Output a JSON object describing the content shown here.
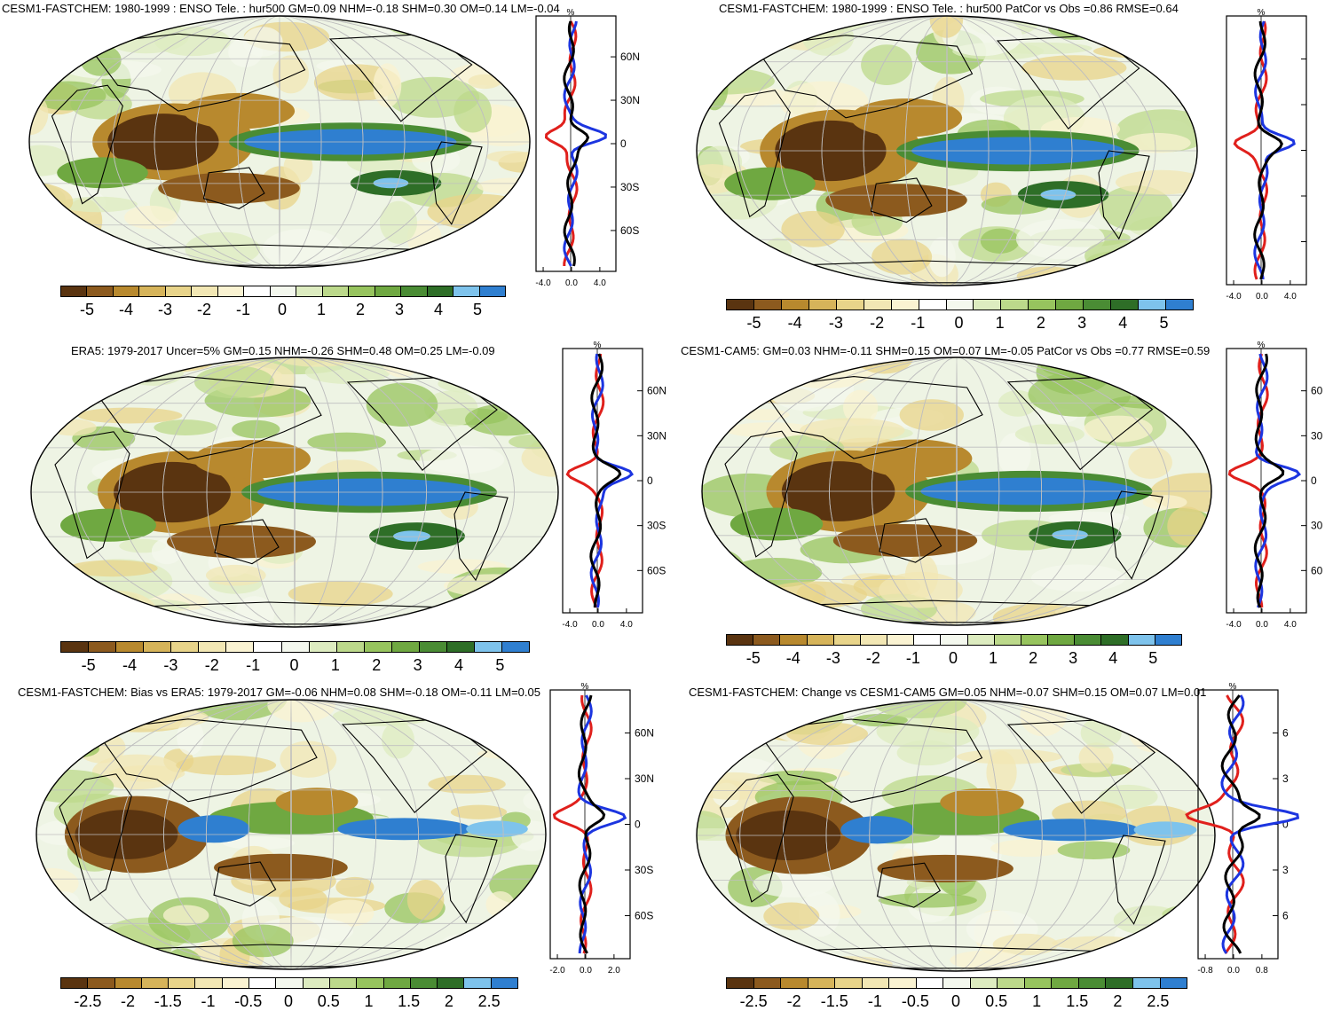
{
  "colormaps": {
    "palette": [
      "#5a3410",
      "#8c5a1e",
      "#b8892e",
      "#d6b45a",
      "#e8d48a",
      "#f2e7b4",
      "#faf3d2",
      "#ffffff",
      "#f4f8ee",
      "#ddecc0",
      "#bcd98b",
      "#97c45e",
      "#6fa841",
      "#4a8c34",
      "#2e6e27",
      "#7ec3ec",
      "#2f7fd0"
    ]
  },
  "panels": [
    {
      "id": "cesm1-fastchem",
      "title": "CESM1-FASTCHEM: 1980-1999 : ENSO Tele. : hur500 GM=0.09 NHM=-0.18 SHM=0.30 OM=0.14 LM=-0.04",
      "colorbar": {
        "labels": [
          "-5",
          "-4",
          "-3",
          "-2",
          "-1",
          "0",
          "1",
          "2",
          "3",
          "4",
          "5"
        ]
      },
      "profile": {
        "unit": "%",
        "xticks": [
          "-4.0",
          "0.0",
          "4.0"
        ],
        "yticks": [
          "60N",
          "30N",
          "0",
          "30S",
          "60S"
        ],
        "series_colors": [
          "#e0201c",
          "#1c35e0",
          "#000000"
        ]
      }
    },
    {
      "id": "cesm1-fastchem-patcor",
      "title": "CESM1-FASTCHEM: 1980-1999 : ENSO Tele. : hur500 PatCor vs Obs =0.86 RMSE=0.64",
      "colorbar": {
        "labels": [
          "-5",
          "-4",
          "-3",
          "-2",
          "-1",
          "0",
          "1",
          "2",
          "3",
          "4",
          "5"
        ]
      },
      "profile": {
        "unit": "%",
        "xticks": [
          "-4.0",
          "0.0",
          "4.0"
        ],
        "yticks": [
          "",
          "",
          "",
          "",
          ""
        ],
        "series_colors": [
          "#e0201c",
          "#1c35e0",
          "#000000"
        ]
      }
    },
    {
      "id": "era5",
      "title": "ERA5: 1979-2017 Uncer=5% GM=0.15 NHM=-0.26 SHM=0.48 OM=0.25 LM=-0.09",
      "colorbar": {
        "labels": [
          "-5",
          "-4",
          "-3",
          "-2",
          "-1",
          "0",
          "1",
          "2",
          "3",
          "4",
          "5"
        ]
      },
      "profile": {
        "unit": "%",
        "xticks": [
          "-4.0",
          "0.0",
          "4.0"
        ],
        "yticks": [
          "60N",
          "30N",
          "0",
          "30S",
          "60S"
        ],
        "series_colors": [
          "#e0201c",
          "#1c35e0",
          "#000000"
        ]
      }
    },
    {
      "id": "cesm1-cam5",
      "title": "CESM1-CAM5: GM=0.03 NHM=-0.11 SHM=0.15 OM=0.07 LM=-0.05 PatCor vs Obs =0.77 RMSE=0.59",
      "colorbar": {
        "labels": [
          "-5",
          "-4",
          "-3",
          "-2",
          "-1",
          "0",
          "1",
          "2",
          "3",
          "4",
          "5"
        ]
      },
      "profile": {
        "unit": "%",
        "xticks": [
          "-4.0",
          "0.0",
          "4.0"
        ],
        "yticks": [
          "60",
          "30",
          "0",
          "30",
          "60"
        ],
        "series_colors": [
          "#e0201c",
          "#1c35e0",
          "#000000"
        ]
      }
    },
    {
      "id": "bias-vs-era5",
      "title": "CESM1-FASTCHEM: Bias vs ERA5: 1979-2017 GM=-0.06 NHM=0.08 SHM=-0.18 OM=-0.11 LM=0.05",
      "colorbar": {
        "labels": [
          "-2.5",
          "-2",
          "-1.5",
          "-1",
          "-0.5",
          "0",
          "0.5",
          "1",
          "1.5",
          "2",
          "2.5"
        ]
      },
      "profile": {
        "unit": "%",
        "xticks": [
          "-2.0",
          "0.0",
          "2.0"
        ],
        "yticks": [
          "60N",
          "30N",
          "0",
          "30S",
          "60S"
        ],
        "series_colors": [
          "#e0201c",
          "#1c35e0",
          "#000000"
        ]
      }
    },
    {
      "id": "change-vs-cam5",
      "title": "CESM1-FASTCHEM: Change vs CESM1-CAM5 GM=0.05 NHM=-0.07 SHM=0.15 OM=0.07 LM=0.01",
      "colorbar": {
        "labels": [
          "-2.5",
          "-2",
          "-1.5",
          "-1",
          "-0.5",
          "0",
          "0.5",
          "1",
          "1.5",
          "2",
          "2.5"
        ]
      },
      "profile": {
        "unit": "%",
        "xticks": [
          "-0.8",
          "0.0",
          "0.8"
        ],
        "yticks": [
          "6",
          "3",
          "0",
          "3",
          "6"
        ],
        "series_colors": [
          "#e0201c",
          "#1c35e0",
          "#000000"
        ]
      }
    }
  ]
}
